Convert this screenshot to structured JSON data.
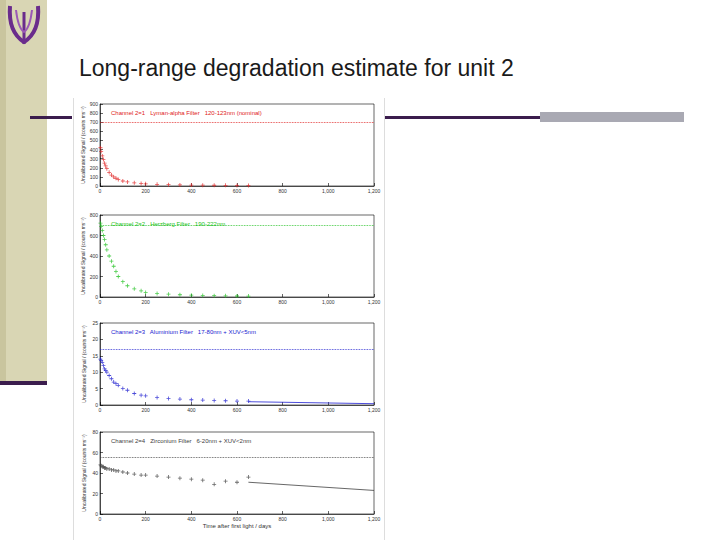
{
  "title": "Long-range degradation estimate for unit 2",
  "chart_data": [
    {
      "type": "scatter",
      "title": "Channel 2=1   Lyman-alpha Filter   120-123nm (nominal)",
      "y_label": "Uncalibrated Signal / (counts ms⁻¹)",
      "xlim": [
        0,
        1200
      ],
      "xticks": [
        0,
        200,
        400,
        600,
        800,
        1000,
        1200
      ],
      "ylim": [
        0,
        900
      ],
      "yticks": [
        0,
        100,
        200,
        300,
        400,
        500,
        600,
        700,
        800,
        900
      ],
      "grid": false,
      "reference_line": 700,
      "series": [
        {
          "type": "scatter",
          "color": "#e02020",
          "marker": "plus",
          "x": [
            2,
            5,
            10,
            15,
            20,
            25,
            30,
            40,
            50,
            60,
            70,
            80,
            100,
            120,
            150,
            180,
            200,
            250,
            300,
            350,
            400,
            450,
            500,
            550,
            600,
            650
          ],
          "values": [
            420,
            380,
            330,
            290,
            250,
            220,
            190,
            150,
            120,
            100,
            85,
            70,
            55,
            45,
            35,
            28,
            24,
            18,
            14,
            12,
            10,
            9,
            8,
            7,
            6,
            6
          ]
        }
      ]
    },
    {
      "type": "scatter",
      "title": "Channel 2=2   Herzberg Filter   190-222nm",
      "y_label": "Uncalibrated Signal / (counts ms⁻¹)",
      "xlim": [
        0,
        1200
      ],
      "xticks": [
        0,
        200,
        400,
        600,
        800,
        1000,
        1200
      ],
      "ylim": [
        0,
        800
      ],
      "yticks": [
        0,
        200,
        400,
        600,
        800
      ],
      "grid": false,
      "reference_line": 700,
      "series": [
        {
          "type": "scatter",
          "color": "#20c020",
          "marker": "plus",
          "x": [
            2,
            5,
            10,
            15,
            20,
            25,
            30,
            40,
            50,
            60,
            70,
            80,
            100,
            120,
            150,
            180,
            200,
            250,
            300,
            350,
            400,
            450,
            500,
            550,
            600,
            650
          ],
          "values": [
            720,
            690,
            650,
            600,
            560,
            510,
            460,
            400,
            350,
            300,
            250,
            200,
            150,
            110,
            80,
            60,
            45,
            35,
            28,
            22,
            18,
            15,
            13,
            11,
            10,
            9
          ]
        }
      ]
    },
    {
      "type": "scatter",
      "title": "Channel 2=3   Aluminium Filter   17-80nm + XUV<5nm",
      "y_label": "Uncalibrated Signal / (counts ms⁻¹)",
      "xlim": [
        0,
        1200
      ],
      "xticks": [
        0,
        200,
        400,
        600,
        800,
        1000,
        1200
      ],
      "ylim": [
        0,
        25
      ],
      "yticks": [
        0,
        5,
        10,
        15,
        20,
        25
      ],
      "grid": false,
      "reference_line": 17,
      "series": [
        {
          "type": "scatter",
          "color": "#2020d0",
          "marker": "plus",
          "x": [
            2,
            5,
            10,
            15,
            20,
            25,
            30,
            40,
            50,
            60,
            70,
            80,
            100,
            120,
            150,
            180,
            200,
            250,
            300,
            350,
            400,
            450,
            500,
            550,
            600,
            650
          ],
          "values": [
            14,
            13.5,
            13,
            12,
            11,
            10.5,
            10,
            9,
            8,
            7,
            6.5,
            6,
            5,
            4.5,
            3.5,
            3,
            2.8,
            2.3,
            2,
            1.8,
            1.6,
            1.5,
            1.4,
            1.3,
            1.2,
            1.2
          ]
        },
        {
          "type": "line",
          "color": "#2020d0",
          "line_style": "solid",
          "x": [
            650,
            1200
          ],
          "values": [
            1.0,
            0.4
          ]
        }
      ]
    },
    {
      "type": "scatter",
      "title": "Channel 2=4   Zirconium Filter   6-20nm + XUV<2nm",
      "y_label": "Uncalibrated Signal / (counts ms⁻¹)",
      "x_label": "Time after first light / days",
      "xlim": [
        0,
        1200
      ],
      "xticks": [
        0,
        200,
        400,
        600,
        800,
        1000,
        1200
      ],
      "ylim": [
        0,
        80
      ],
      "yticks": [
        0,
        20,
        40,
        60,
        80
      ],
      "grid": false,
      "reference_line": 55,
      "series": [
        {
          "type": "scatter",
          "color": "#404040",
          "marker": "plus",
          "x": [
            2,
            5,
            10,
            15,
            20,
            25,
            30,
            40,
            50,
            60,
            70,
            80,
            100,
            120,
            150,
            180,
            200,
            250,
            300,
            350,
            400,
            450,
            500,
            550,
            600,
            650
          ],
          "values": [
            48,
            47,
            46,
            46,
            45,
            45,
            44,
            44,
            43,
            43,
            42,
            42,
            41,
            40,
            39,
            38,
            38,
            37,
            36,
            35,
            34,
            33,
            29,
            32,
            31,
            36
          ]
        },
        {
          "type": "line",
          "color": "#404040",
          "line_style": "solid",
          "x": [
            650,
            1200
          ],
          "values": [
            31,
            23
          ]
        }
      ]
    }
  ]
}
